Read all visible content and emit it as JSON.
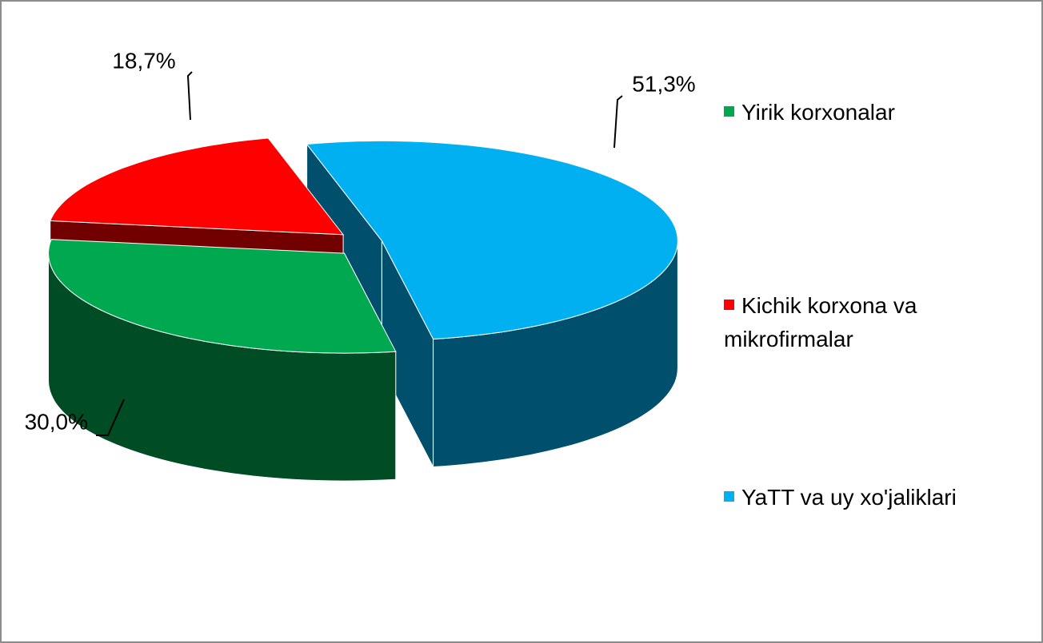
{
  "chart_data": {
    "type": "pie",
    "categories": [
      "Yirik korxonalar",
      "Kichik korxona va mikrofirmalar",
      "YaTT va uy xo'jaliklari"
    ],
    "values": [
      30.0,
      18.7,
      51.3
    ],
    "value_labels": [
      "30,0%",
      "18,7%",
      "51,3%"
    ],
    "colors": [
      "#00a84f",
      "#ff0000",
      "#00b0f0"
    ],
    "legend": "right"
  }
}
